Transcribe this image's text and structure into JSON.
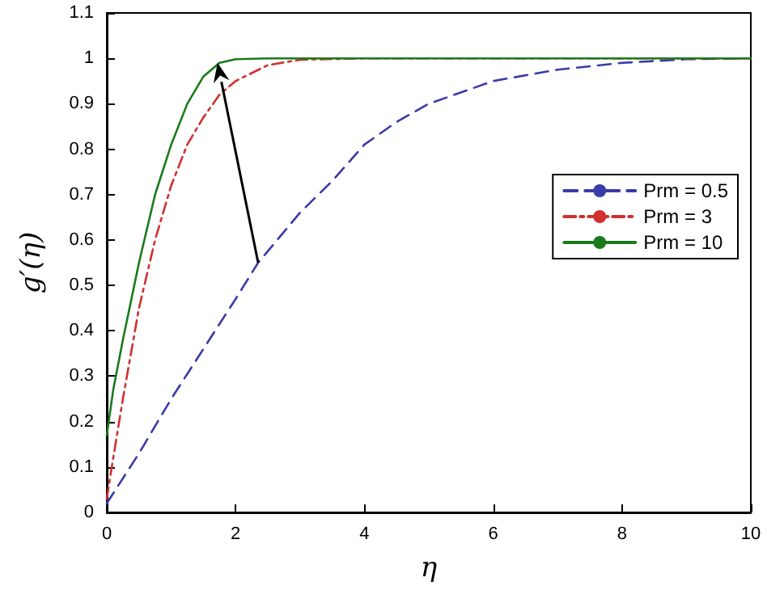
{
  "chart_data": {
    "type": "line",
    "xlabel": "η",
    "ylabel": "g′(η)",
    "xlim": [
      0,
      10
    ],
    "xticks": [
      0,
      2,
      4,
      6,
      8,
      10
    ],
    "ylim": [
      0,
      1.1
    ],
    "yticks": [
      0,
      0.1,
      0.2,
      0.3,
      0.4,
      0.5,
      0.6,
      0.7,
      0.8,
      0.9,
      1,
      1.1
    ],
    "grid": false,
    "legend": "right",
    "marker": "none",
    "series": [
      {
        "name": "Prm = 0.5",
        "color": "#3a3aa8",
        "line_style": "dashed",
        "x": [
          0,
          0.5,
          1,
          1.5,
          2,
          2.35,
          3,
          3.5,
          4,
          4.5,
          5,
          6,
          7,
          8,
          9,
          10
        ],
        "values": [
          0.02,
          0.13,
          0.25,
          0.36,
          0.47,
          0.55,
          0.66,
          0.73,
          0.81,
          0.86,
          0.9,
          0.95,
          0.975,
          0.99,
          0.998,
          1
        ]
      },
      {
        "name": "Prm = 3",
        "color": "#d03030",
        "line_style": "dashdot",
        "x": [
          0,
          0.1,
          0.25,
          0.5,
          0.75,
          1,
          1.25,
          1.5,
          1.75,
          2,
          2.5,
          3,
          4,
          10
        ],
        "values": [
          0.03,
          0.12,
          0.25,
          0.45,
          0.6,
          0.72,
          0.81,
          0.87,
          0.92,
          0.95,
          0.985,
          0.997,
          1,
          1
        ]
      },
      {
        "name": "Prm = 10",
        "color": "#1a7a1a",
        "line_style": "solid",
        "x": [
          0,
          0.1,
          0.25,
          0.5,
          0.75,
          1,
          1.25,
          1.5,
          1.75,
          2,
          2.5,
          10
        ],
        "values": [
          0.17,
          0.27,
          0.38,
          0.55,
          0.7,
          0.81,
          0.9,
          0.96,
          0.99,
          0.998,
          1,
          1
        ]
      }
    ]
  }
}
